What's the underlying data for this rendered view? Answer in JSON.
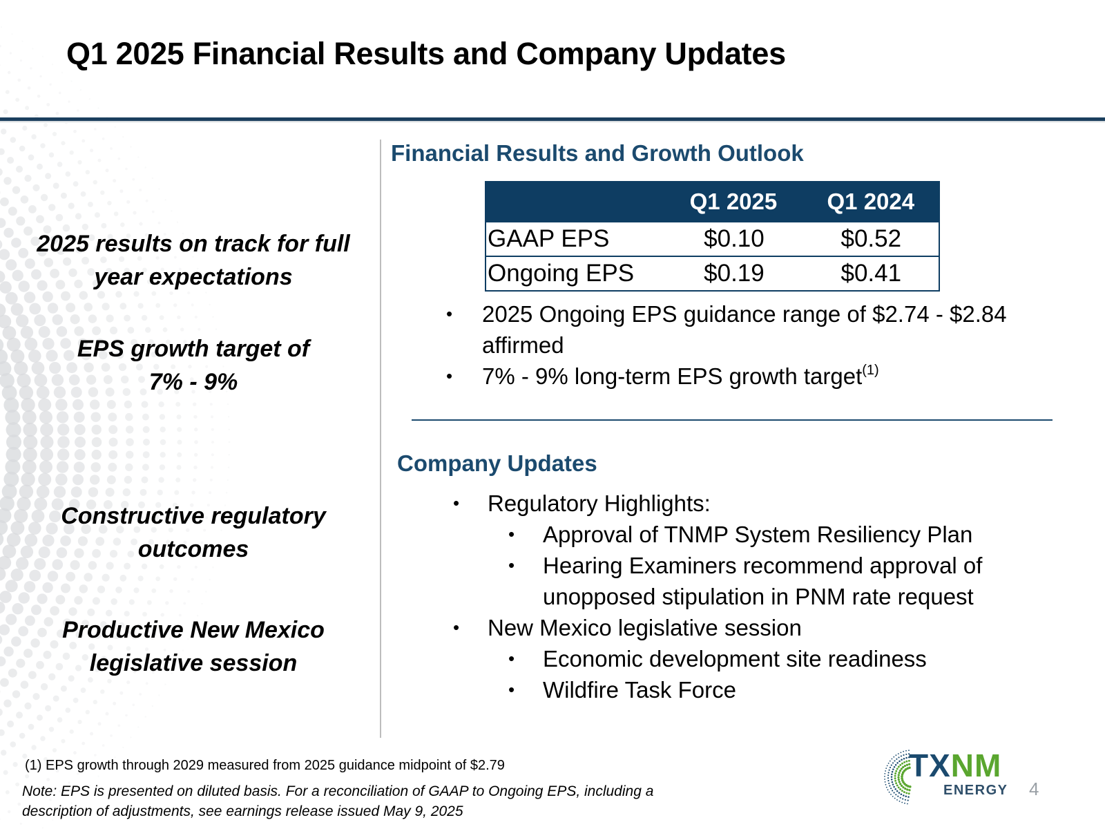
{
  "slide": {
    "title": "Q1 2025 Financial Results and Company Updates",
    "page_number": "4"
  },
  "highlights": [
    {
      "lines": [
        "2025 results on track for full",
        "year expectations"
      ]
    },
    {
      "lines": [
        "EPS growth target of",
        "7% - 9%"
      ]
    },
    {
      "lines": [
        "Constructive regulatory",
        "outcomes"
      ]
    },
    {
      "lines": [
        "Productive New Mexico",
        "legislative session"
      ]
    }
  ],
  "financial": {
    "heading": "Financial Results and Growth Outlook",
    "table": {
      "headers": [
        "",
        "Q1 2025",
        "Q1 2024"
      ],
      "rows": [
        [
          "GAAP EPS",
          "$0.10",
          "$0.52"
        ],
        [
          "Ongoing EPS",
          "$0.19",
          "$0.41"
        ]
      ]
    },
    "bullets": [
      {
        "text": "2025 Ongoing EPS guidance range of $2.74 - $2.84 affirmed",
        "sup": ""
      },
      {
        "text": "7% - 9% long-term EPS growth target",
        "sup": "(1)"
      }
    ]
  },
  "updates": {
    "heading": "Company Updates",
    "items": [
      {
        "text": "Regulatory Highlights:",
        "sub": [
          "Approval of TNMP System Resiliency Plan",
          "Hearing Examiners recommend approval of unopposed stipulation in PNM rate request"
        ]
      },
      {
        "text": "New Mexico legislative session",
        "sub": [
          "Economic development site readiness",
          "Wildfire Task Force"
        ]
      }
    ]
  },
  "bullet_glyph": "•",
  "footer": {
    "footnote": "(1) EPS growth through 2029 measured from 2025 guidance midpoint of $2.79",
    "note": "Note:  EPS is presented on diluted basis. For a reconciliation of GAAP to Ongoing EPS, including a description of adjustments, see earnings release issued May 9, 2025"
  },
  "logo": {
    "name_part1": "TX",
    "name_part2": "NM",
    "sub": "ENERGY",
    "primary_color": "#1b4a6e",
    "accent_color": "#5aa62f"
  },
  "colors": {
    "header_rule": "#1b3f5e",
    "table_header_bg": "#0e3d62",
    "heading_blue": "#1b4a6e"
  }
}
